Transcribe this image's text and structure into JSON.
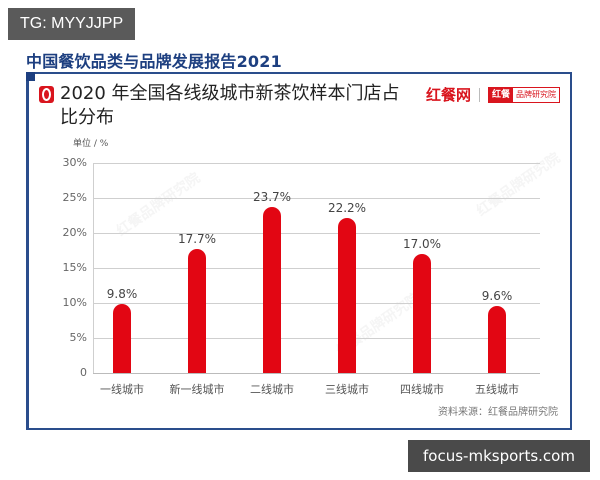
{
  "overlay": {
    "tg_tag": "TG: MYYJJPP",
    "site_tag": "focus-mksports.com"
  },
  "report": {
    "title": "中国餐饮品类与品牌发展报告2021"
  },
  "brand": {
    "main": "红餐网",
    "box_red": "红餐",
    "box_text": "品牌研究院"
  },
  "chart": {
    "title": "2020 年全国各线级城市新茶饮样本门店占比分布",
    "unit": "单位 / %",
    "source": "资料来源：红餐品牌研究院",
    "yticks": [
      "0",
      "5%",
      "10%",
      "15%",
      "20%",
      "25%",
      "30%"
    ],
    "bar_labels": [
      "9.8%",
      "17.7%",
      "23.7%",
      "22.2%",
      "17.0%",
      "9.6%"
    ],
    "categories": [
      "一线城市",
      "新一线城市",
      "二线城市",
      "三线城市",
      "四线城市",
      "五线城市"
    ],
    "bar_color": "#e20613"
  },
  "chart_data": {
    "type": "bar",
    "title": "2020 年全国各线级城市新茶饮样本门店占比分布",
    "categories": [
      "一线城市",
      "新一线城市",
      "二线城市",
      "三线城市",
      "四线城市",
      "五线城市"
    ],
    "values": [
      9.8,
      17.7,
      23.7,
      22.2,
      17.0,
      9.6
    ],
    "xlabel": "",
    "ylabel": "单位 / %",
    "ylim": [
      0,
      30
    ],
    "yticks": [
      0,
      5,
      10,
      15,
      20,
      25,
      30
    ],
    "grid": true,
    "legend": null,
    "source": "资料来源：红餐品牌研究院",
    "series_color": "#e20613"
  }
}
